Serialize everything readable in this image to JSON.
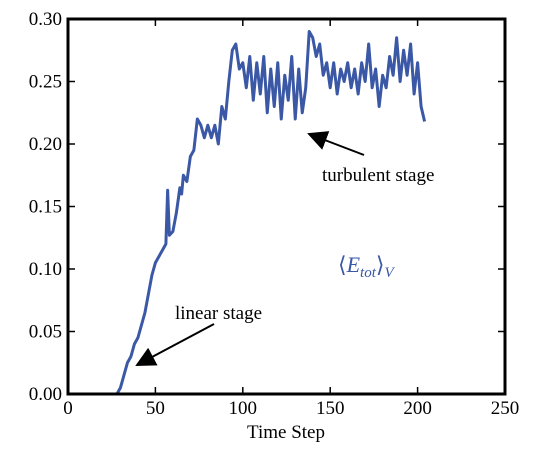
{
  "chart_data": {
    "type": "line",
    "xlabel": "Time Step",
    "x": [
      28,
      30,
      32,
      34,
      36,
      38,
      40,
      42,
      44,
      46,
      48,
      50,
      52,
      54,
      56,
      57,
      58,
      60,
      62,
      64,
      65,
      66,
      68,
      70,
      72,
      74,
      76,
      78,
      80,
      82,
      84,
      86,
      88,
      90,
      92,
      94,
      96,
      98,
      100,
      102,
      104,
      106,
      108,
      110,
      112,
      114,
      116,
      118,
      120,
      122,
      124,
      126,
      128,
      130,
      132,
      134,
      136,
      138,
      140,
      142,
      144,
      146,
      148,
      150,
      152,
      154,
      156,
      158,
      160,
      162,
      164,
      166,
      168,
      170,
      172,
      174,
      176,
      178,
      180,
      182,
      184,
      186,
      188,
      190,
      192,
      194,
      196,
      198,
      200,
      202,
      204
    ],
    "series": [
      {
        "color": "#3b58a6",
        "values": [
          0.0,
          0.005,
          0.015,
          0.025,
          0.03,
          0.04,
          0.045,
          0.055,
          0.065,
          0.08,
          0.095,
          0.105,
          0.11,
          0.115,
          0.12,
          0.163,
          0.127,
          0.13,
          0.145,
          0.165,
          0.16,
          0.175,
          0.17,
          0.19,
          0.195,
          0.22,
          0.215,
          0.205,
          0.215,
          0.205,
          0.215,
          0.2,
          0.23,
          0.22,
          0.25,
          0.275,
          0.28,
          0.26,
          0.265,
          0.245,
          0.27,
          0.235,
          0.265,
          0.24,
          0.27,
          0.225,
          0.26,
          0.23,
          0.265,
          0.22,
          0.255,
          0.235,
          0.27,
          0.22,
          0.26,
          0.225,
          0.245,
          0.29,
          0.285,
          0.27,
          0.28,
          0.255,
          0.265,
          0.245,
          0.265,
          0.24,
          0.26,
          0.25,
          0.265,
          0.245,
          0.26,
          0.24,
          0.265,
          0.25,
          0.28,
          0.245,
          0.26,
          0.23,
          0.255,
          0.245,
          0.27,
          0.255,
          0.285,
          0.25,
          0.275,
          0.255,
          0.28,
          0.24,
          0.265,
          0.23,
          0.218
        ]
      }
    ],
    "xlim": [
      0,
      250
    ],
    "xticks": [
      0,
      50,
      100,
      150,
      200,
      250
    ],
    "ylim": [
      0,
      0.3
    ],
    "yticks": [
      {
        "value": 0,
        "label": "0.00"
      },
      {
        "value": 0.05,
        "label": "0.05"
      },
      {
        "value": 0.1,
        "label": "0.10"
      },
      {
        "value": 0.15,
        "label": "0.15"
      },
      {
        "value": 0.2,
        "label": "0.20"
      },
      {
        "value": 0.25,
        "label": "0.25"
      },
      {
        "value": 0.3,
        "label": "0.30"
      }
    ],
    "annotations": [
      "turbulent stage",
      "linear stage"
    ],
    "series_label": [
      "⟨",
      "E",
      "tot",
      "⟩",
      "V"
    ]
  }
}
